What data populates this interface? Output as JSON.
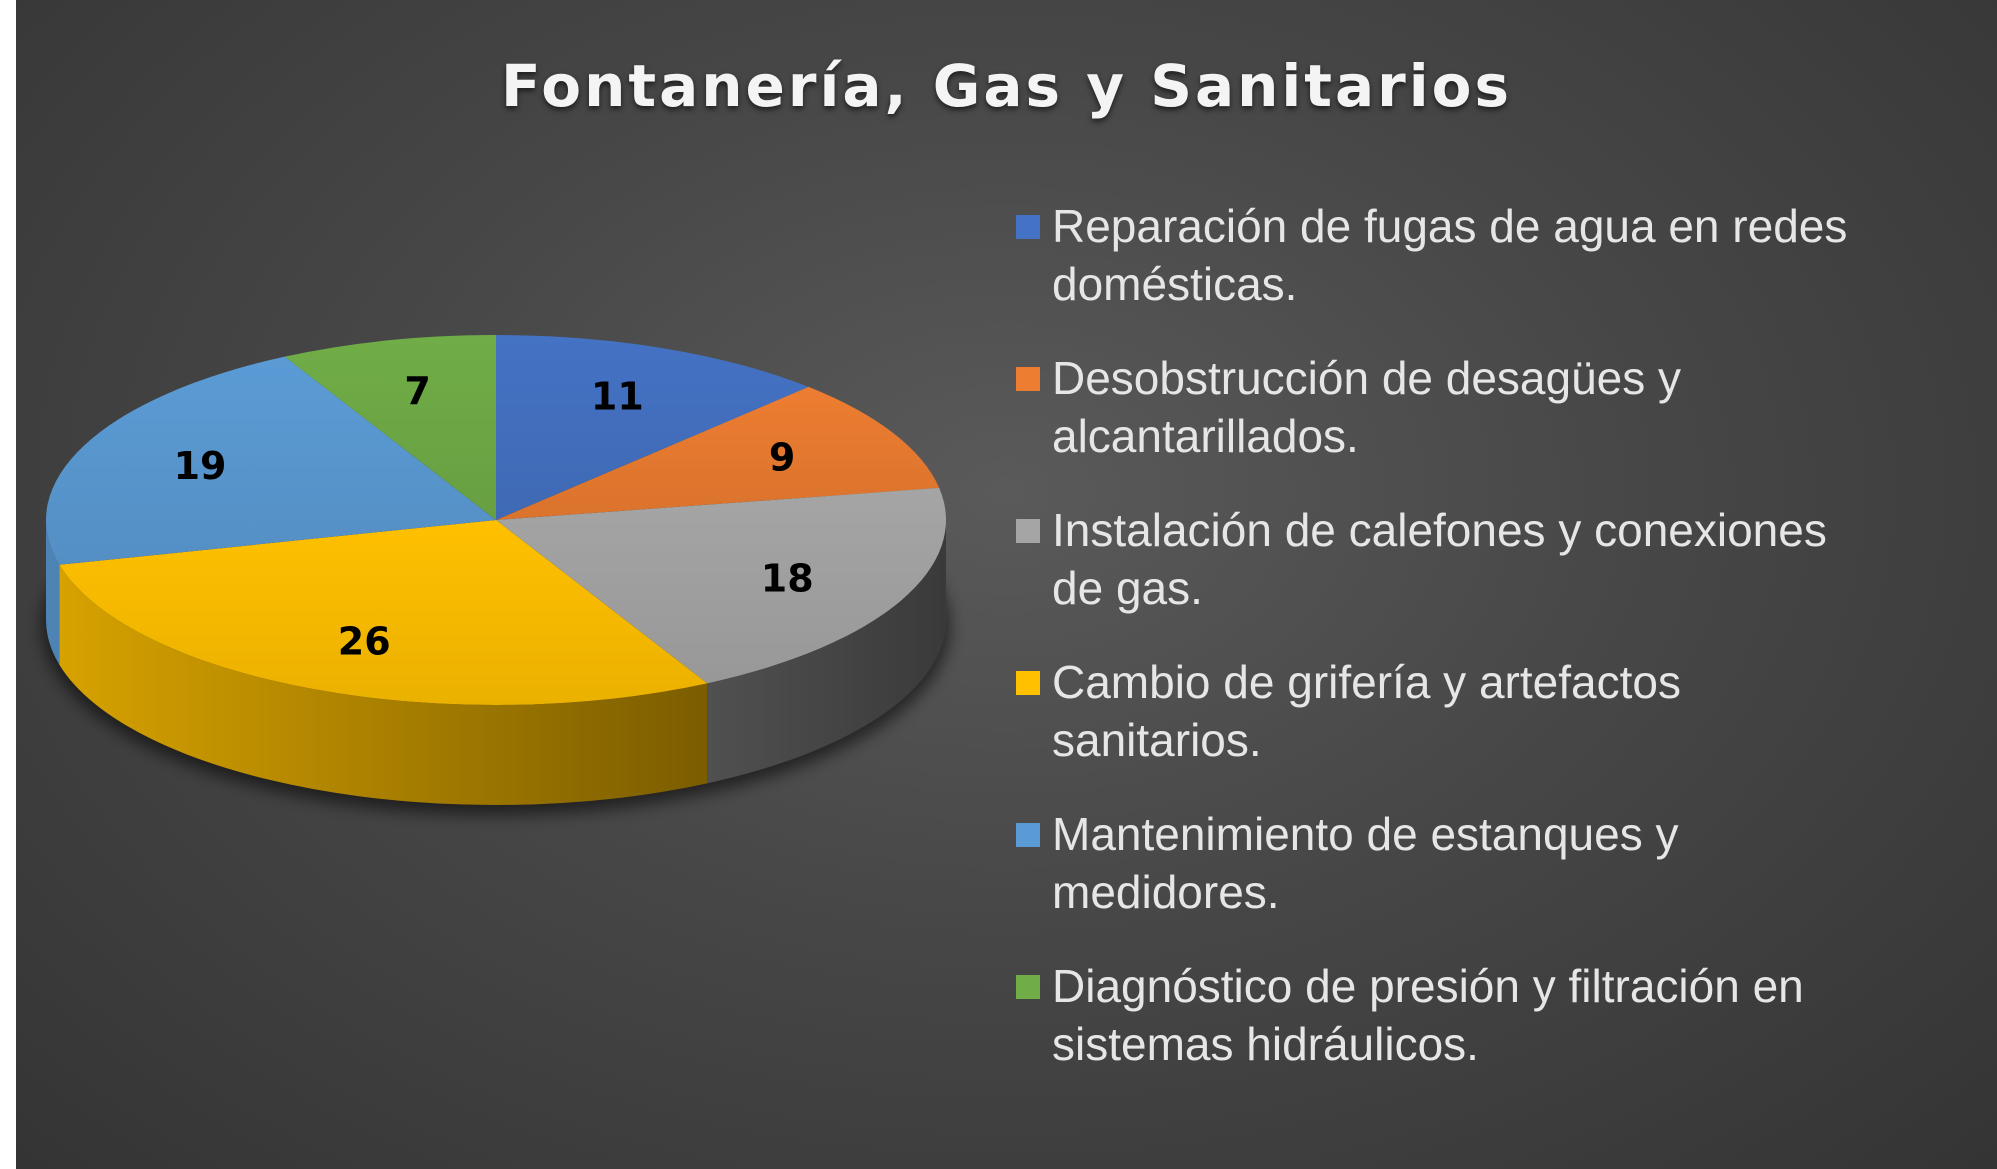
{
  "chart_data": {
    "type": "pie",
    "title": "Fontanería, Gas y Sanitarios",
    "labels": [
      "Reparación de fugas de agua en redes domésticas.",
      "Desobstrucción de desagües y alcantarillados.",
      "Instalación de calefones y conexiones de gas.",
      "Cambio de grifería y artefactos sanitarios.",
      "Mantenimiento de estanques y medidores.",
      "Diagnóstico de presión y filtración en sistemas hidráulicos."
    ],
    "values": [
      11,
      9,
      18,
      26,
      19,
      7
    ],
    "value_labels": [
      "11",
      "9",
      "18",
      "26",
      "19",
      "7"
    ],
    "colors": [
      "#4472C4",
      "#ED7D31",
      "#A5A5A5",
      "#FFC000",
      "#5B9BD5",
      "#70AD47"
    ],
    "legend_position": "right",
    "three_d": true
  }
}
